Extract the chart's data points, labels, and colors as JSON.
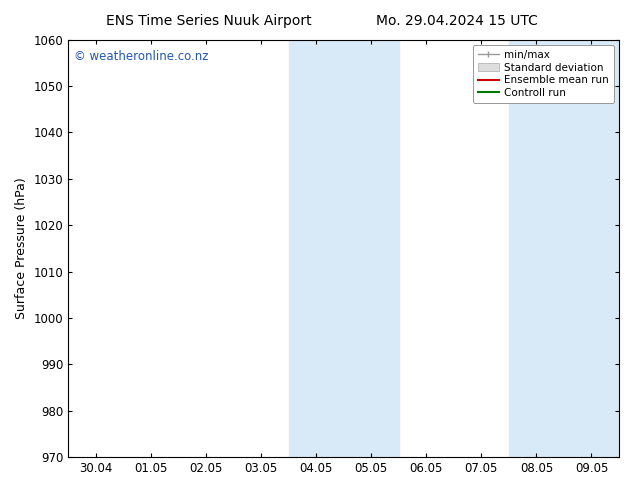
{
  "title_left": "ENS Time Series Nuuk Airport",
  "title_right": "Mo. 29.04.2024 15 UTC",
  "ylabel": "Surface Pressure (hPa)",
  "ylim": [
    970,
    1060
  ],
  "yticks": [
    970,
    980,
    990,
    1000,
    1010,
    1020,
    1030,
    1040,
    1050,
    1060
  ],
  "xtick_labels": [
    "30.04",
    "01.05",
    "02.05",
    "03.05",
    "04.05",
    "05.05",
    "06.05",
    "07.05",
    "08.05",
    "09.05"
  ],
  "xlim": [
    -0.5,
    9.5
  ],
  "shaded_bands": [
    {
      "x_start": 3.5,
      "x_end": 5.5
    },
    {
      "x_start": 7.5,
      "x_end": 9.5
    }
  ],
  "shade_color": "#d8eaf7",
  "watermark": "© weatheronline.co.nz",
  "watermark_color": "#2255bb",
  "legend_items": [
    {
      "label": "min/max",
      "color": "#aaaaaa",
      "style": "minmax"
    },
    {
      "label": "Standard deviation",
      "color": "#cccccc",
      "style": "std"
    },
    {
      "label": "Ensemble mean run",
      "color": "#cc0000",
      "style": "line"
    },
    {
      "label": "Controll run",
      "color": "#007700",
      "style": "line"
    }
  ],
  "bg_color": "#ffffff",
  "title_fontsize": 10,
  "axis_fontsize": 9,
  "tick_fontsize": 8.5,
  "watermark_fontsize": 8.5
}
